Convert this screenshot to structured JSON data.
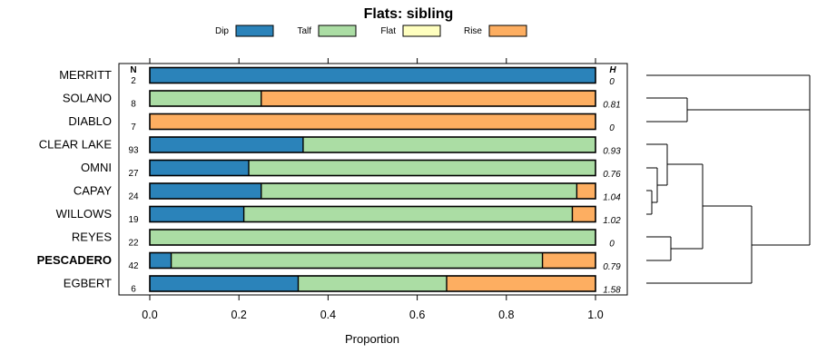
{
  "chart_data": {
    "type": "stacked-bar-horizontal",
    "title": "Flats: sibling",
    "xlabel": "Proportion",
    "xlim": [
      0,
      1
    ],
    "xticks": [
      "0.0",
      "0.2",
      "0.4",
      "0.6",
      "0.8",
      "1.0"
    ],
    "xtick_values": [
      0,
      0.2,
      0.4,
      0.6,
      0.8,
      1.0
    ],
    "n_header": "N",
    "h_header": "H",
    "legend": [
      {
        "name": "Dip",
        "color": "#2b83ba"
      },
      {
        "name": "Talf",
        "color": "#abdda4"
      },
      {
        "name": "Flat",
        "color": "#ffffbf"
      },
      {
        "name": "Rise",
        "color": "#fdae61"
      }
    ],
    "rows": [
      {
        "label": "MERRITT",
        "bold": false,
        "n": "2",
        "h": "0",
        "values": [
          1.0,
          0,
          0,
          0
        ]
      },
      {
        "label": "SOLANO",
        "bold": false,
        "n": "8",
        "h": "0.81",
        "values": [
          0,
          0.25,
          0,
          0.75
        ]
      },
      {
        "label": "DIABLO",
        "bold": false,
        "n": "7",
        "h": "0",
        "values": [
          0,
          0,
          0,
          1.0
        ]
      },
      {
        "label": "CLEAR LAKE",
        "bold": false,
        "n": "93",
        "h": "0.93",
        "values": [
          0.344,
          0.656,
          0,
          0
        ]
      },
      {
        "label": "OMNI",
        "bold": false,
        "n": "27",
        "h": "0.76",
        "values": [
          0.222,
          0.778,
          0,
          0
        ]
      },
      {
        "label": "CAPAY",
        "bold": false,
        "n": "24",
        "h": "1.04",
        "values": [
          0.25,
          0.708,
          0,
          0.042
        ]
      },
      {
        "label": "WILLOWS",
        "bold": false,
        "n": "19",
        "h": "1.02",
        "values": [
          0.211,
          0.737,
          0,
          0.052
        ]
      },
      {
        "label": "REYES",
        "bold": false,
        "n": "22",
        "h": "0",
        "values": [
          0,
          1.0,
          0,
          0
        ]
      },
      {
        "label": "PESCADERO",
        "bold": true,
        "n": "42",
        "h": "0.79",
        "values": [
          0.048,
          0.833,
          0,
          0.119
        ]
      },
      {
        "label": "EGBERT",
        "bold": false,
        "n": "6",
        "h": "1.58",
        "values": [
          0.333,
          0.333,
          0,
          0.334
        ]
      }
    ]
  }
}
